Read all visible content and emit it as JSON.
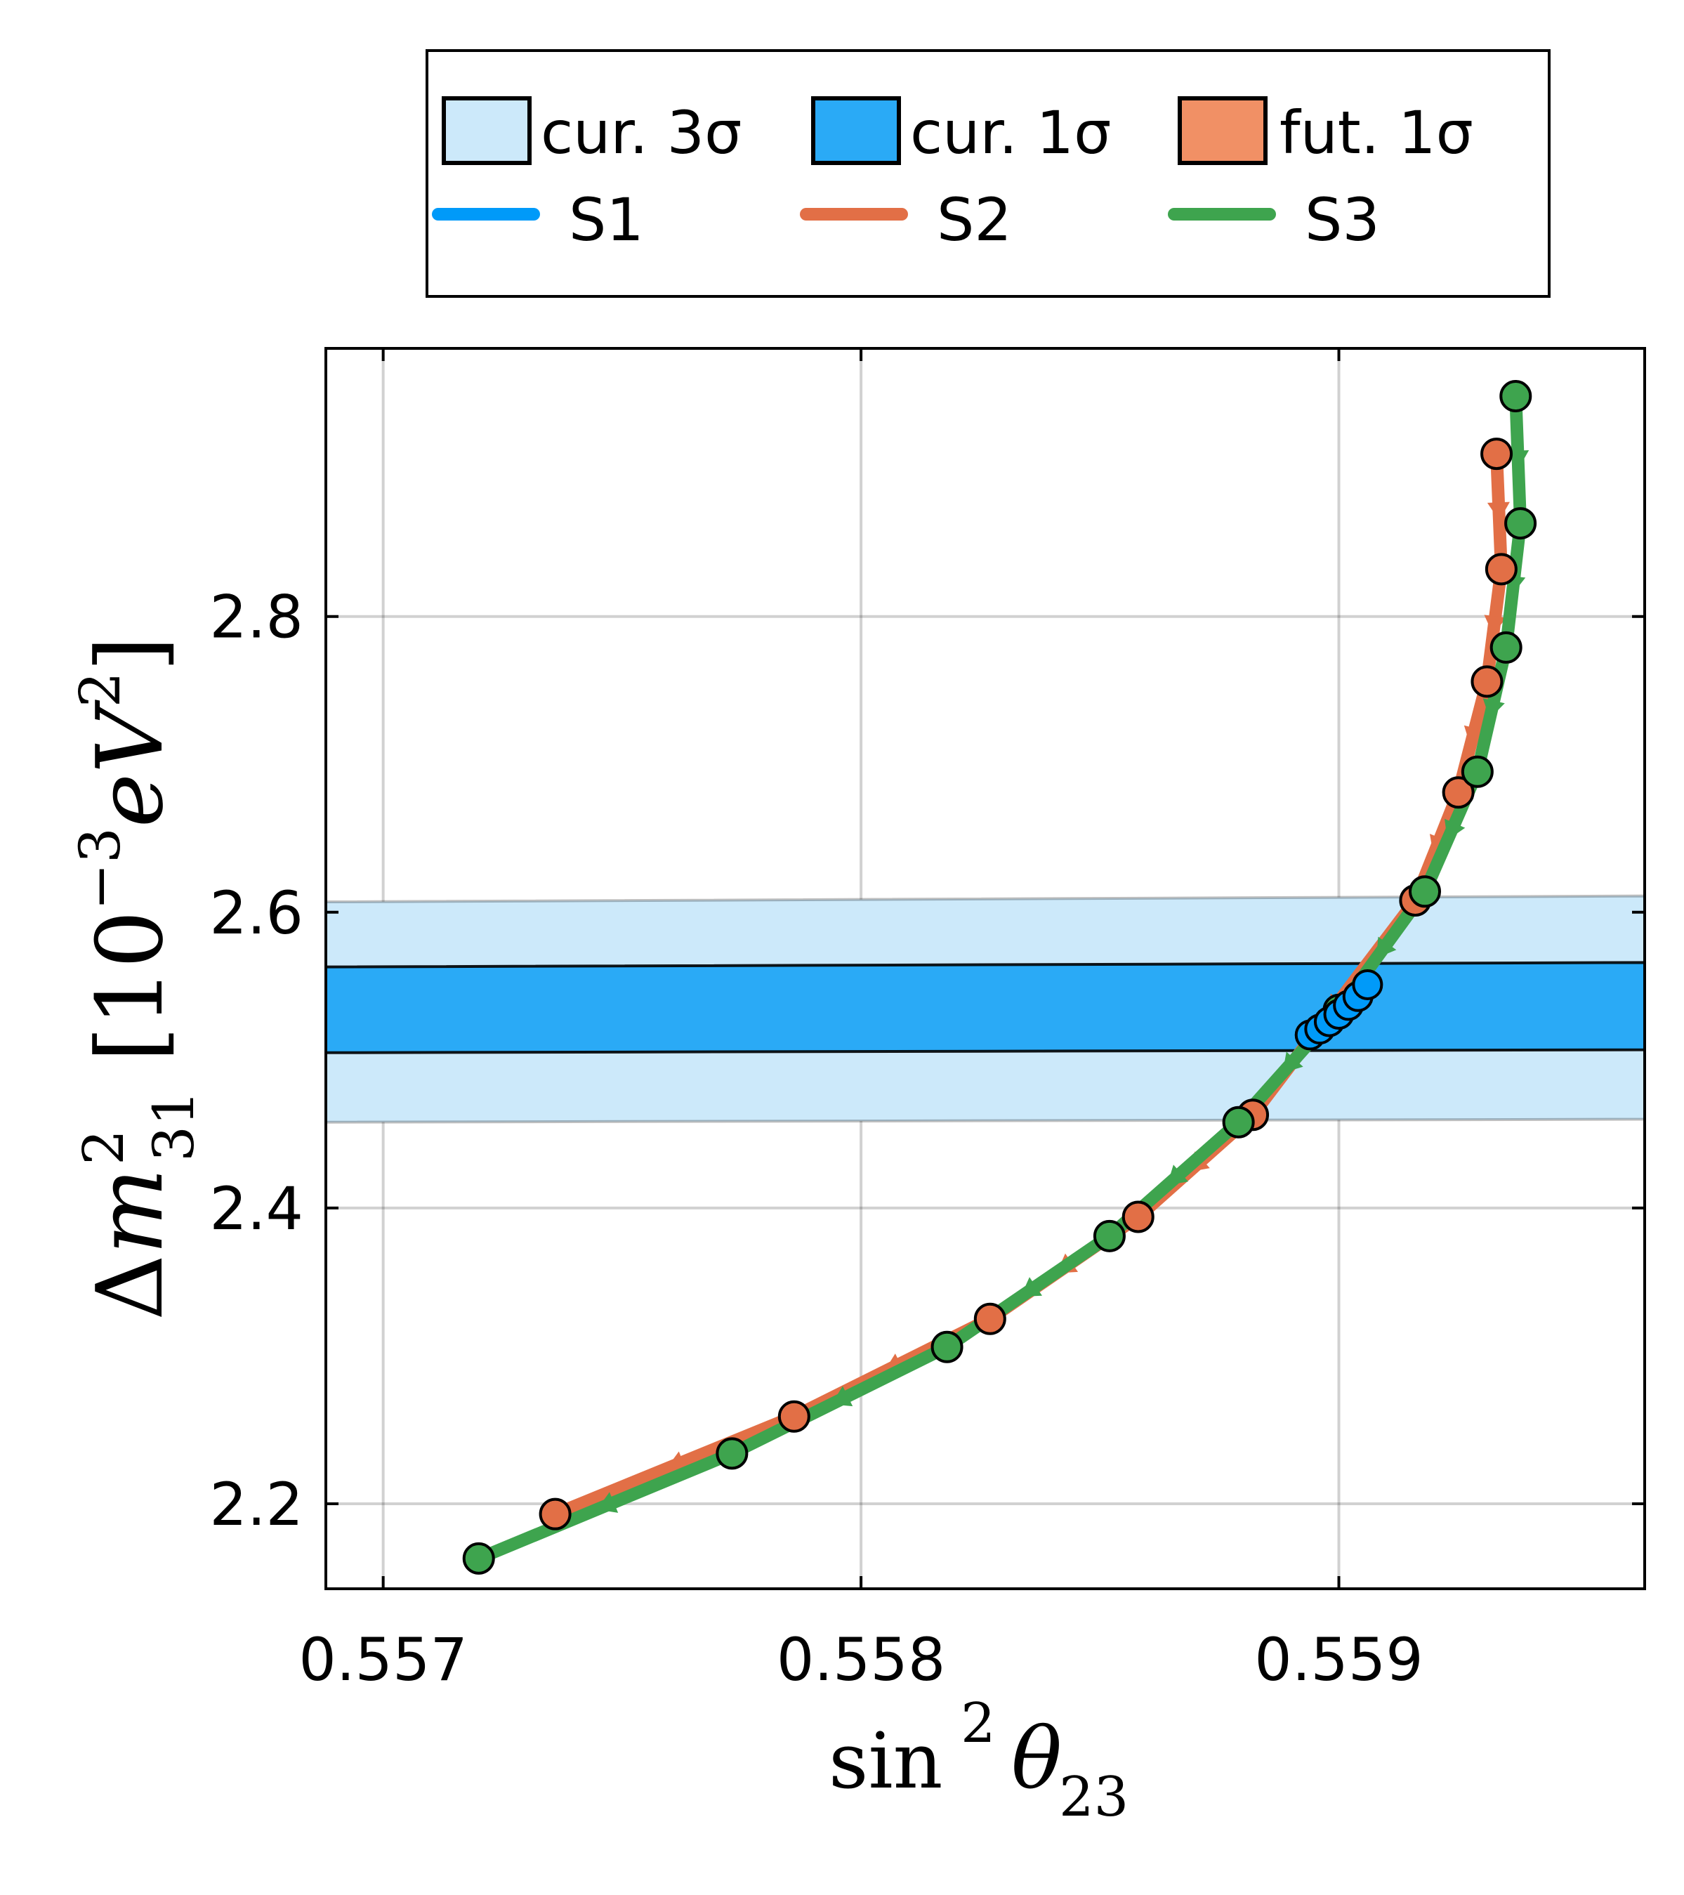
{
  "chart_data": {
    "type": "line",
    "xlabel": {
      "fn": "sin",
      "sup": "2",
      "var": "θ",
      "sub": "23"
    },
    "ylabel": {
      "pre": "Δ",
      "var": "m",
      "sup": "2",
      "sub": "31",
      "unit_open": "[10",
      "unit_exp": "−3",
      "unit_var": "eV",
      "unit_exp2": "2",
      "unit_close": "]"
    },
    "xlim": [
      0.55688,
      0.55964
    ],
    "ylim": [
      2.1425,
      2.9813
    ],
    "xticks": [
      0.557,
      0.558,
      0.559
    ],
    "xtick_labels": [
      "0.557",
      "0.558",
      "0.559"
    ],
    "yticks": [
      2.2,
      2.4,
      2.6,
      2.8
    ],
    "ytick_labels": [
      "2.2",
      "2.4",
      "2.6",
      "2.8"
    ],
    "grid": true,
    "legend_position": "top-outside",
    "bands": [
      {
        "name": "cur. 3σ",
        "color": "#cce9fa",
        "left": [
          2.458,
          2.607
        ],
        "right": [
          2.46,
          2.611
        ]
      },
      {
        "name": "cur. 1σ",
        "color": "#2aaaf6",
        "left": [
          2.505,
          2.563
        ],
        "right": [
          2.507,
          2.566
        ]
      },
      {
        "name": "fut. 1σ",
        "color": "#f19065",
        "left": null,
        "right": null
      }
    ],
    "series": [
      {
        "name": "S1",
        "color": "#009af9",
        "x": [
          0.55894,
          0.55896,
          0.55898,
          0.559,
          0.55902,
          0.55904,
          0.55906
        ],
        "y": [
          2.517,
          2.521,
          2.526,
          2.531,
          2.537,
          2.543,
          2.551
        ]
      },
      {
        "name": "S2",
        "color": "#e26f46",
        "x": [
          0.55736,
          0.55786,
          0.55827,
          0.55858,
          0.55882,
          0.55916,
          0.55925,
          0.55931,
          0.55934,
          0.55933
        ],
        "y": [
          2.193,
          2.259,
          2.325,
          2.394,
          2.463,
          2.608,
          2.681,
          2.756,
          2.832,
          2.91
        ]
      },
      {
        "name": "S3",
        "color": "#3ea44e",
        "x": [
          0.5572,
          0.55773,
          0.55818,
          0.55852,
          0.55879,
          0.559,
          0.55918,
          0.55929,
          0.55935,
          0.55938,
          0.55937
        ],
        "y": [
          2.163,
          2.234,
          2.306,
          2.381,
          2.458,
          2.534,
          2.614,
          2.695,
          2.779,
          2.863,
          2.949
        ]
      }
    ]
  }
}
